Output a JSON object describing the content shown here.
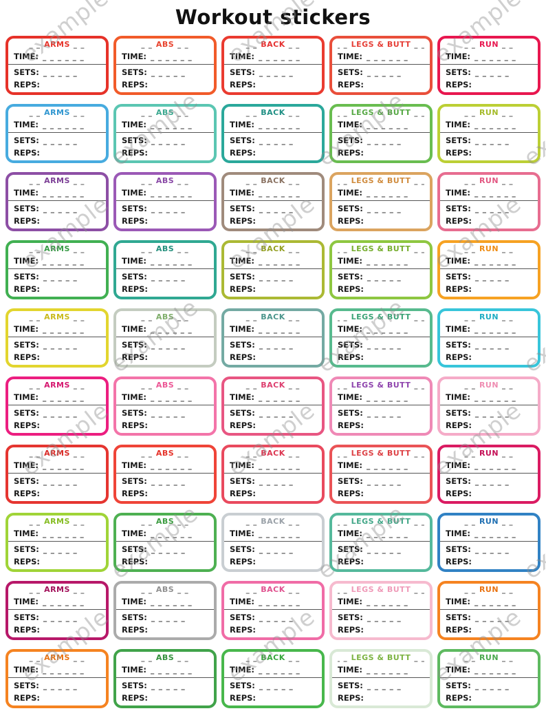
{
  "page": {
    "title": "Workout stickers",
    "watermark_text": "example"
  },
  "fields": {
    "title_dash": "_ _",
    "time_label": "TIME:",
    "time_blank": "_ _ _ _ _ _",
    "sets_label": "SETS:",
    "sets_blank": "_ _ _ _ _",
    "reps_label": "REPS:",
    "reps_blank": ""
  },
  "columns": [
    "ARMS",
    "ABS",
    "BACK",
    "LEGS & BUTT",
    "RUN"
  ],
  "rows": [
    {
      "colors": [
        "#e63229",
        "#f15b2a",
        "#ea3b30",
        "#e94f3b",
        "#e8174f"
      ],
      "title_colors": [
        "#e63229",
        "#e8432e",
        "#e53030",
        "#e63e36",
        "#e8174f"
      ]
    },
    {
      "colors": [
        "#47abdf",
        "#5bc6b2",
        "#2ba89b",
        "#69bd50",
        "#bccf35"
      ],
      "title_colors": [
        "#2f96d0",
        "#3aa88f",
        "#1f8f84",
        "#55a843",
        "#a4ba28"
      ]
    },
    {
      "colors": [
        "#8d4fa5",
        "#9b59b6",
        "#a08b7c",
        "#dba45f",
        "#e76d90"
      ],
      "title_colors": [
        "#7c3f96",
        "#8948a6",
        "#8a7262",
        "#d08c3e",
        "#e25580"
      ]
    },
    {
      "colors": [
        "#41b052",
        "#30a892",
        "#abb934",
        "#8ec741",
        "#f6a223"
      ],
      "title_colors": [
        "#379a45",
        "#238f7c",
        "#939f21",
        "#76ad2e",
        "#ef8c12"
      ]
    },
    {
      "colors": [
        "#e2d52f",
        "#c4ccc0",
        "#74aaa3",
        "#57ba8e",
        "#38c5da"
      ],
      "title_colors": [
        "#c9ba1c",
        "#7fae6a",
        "#4b958c",
        "#3ba376",
        "#1fadc4"
      ]
    },
    {
      "colors": [
        "#ec1e80",
        "#f374a9",
        "#e85682",
        "#ef89b6",
        "#f5abc8"
      ],
      "title_colors": [
        "#d5176f",
        "#ec5795",
        "#dd3f6f",
        "#8e44ad",
        "#ef8db2"
      ]
    },
    {
      "colors": [
        "#e53530",
        "#ef4438",
        "#e94a5e",
        "#ea5356",
        "#da1b62"
      ],
      "title_colors": [
        "#d92a26",
        "#e5332a",
        "#dc3550",
        "#dd4145",
        "#c40f55"
      ]
    },
    {
      "colors": [
        "#a0d438",
        "#4eb052",
        "#c9ced2",
        "#55b99c",
        "#3182c4"
      ],
      "title_colors": [
        "#85bc20",
        "#3c9c40",
        "#9aa1a8",
        "#41a687",
        "#1f6fb2"
      ]
    },
    {
      "colors": [
        "#b71869",
        "#ababab",
        "#f06ca6",
        "#f6bace",
        "#f58321"
      ],
      "title_colors": [
        "#a10f59",
        "#8f8f8f",
        "#e0528f",
        "#ef9ab8",
        "#e97210"
      ]
    },
    {
      "colors": [
        "#f58321",
        "#41a34a",
        "#48b74c",
        "#d9e9d6",
        "#5eba60"
      ],
      "title_colors": [
        "#e97210",
        "#32903b",
        "#36a53a",
        "#7cb342",
        "#4aa84d"
      ]
    }
  ]
}
